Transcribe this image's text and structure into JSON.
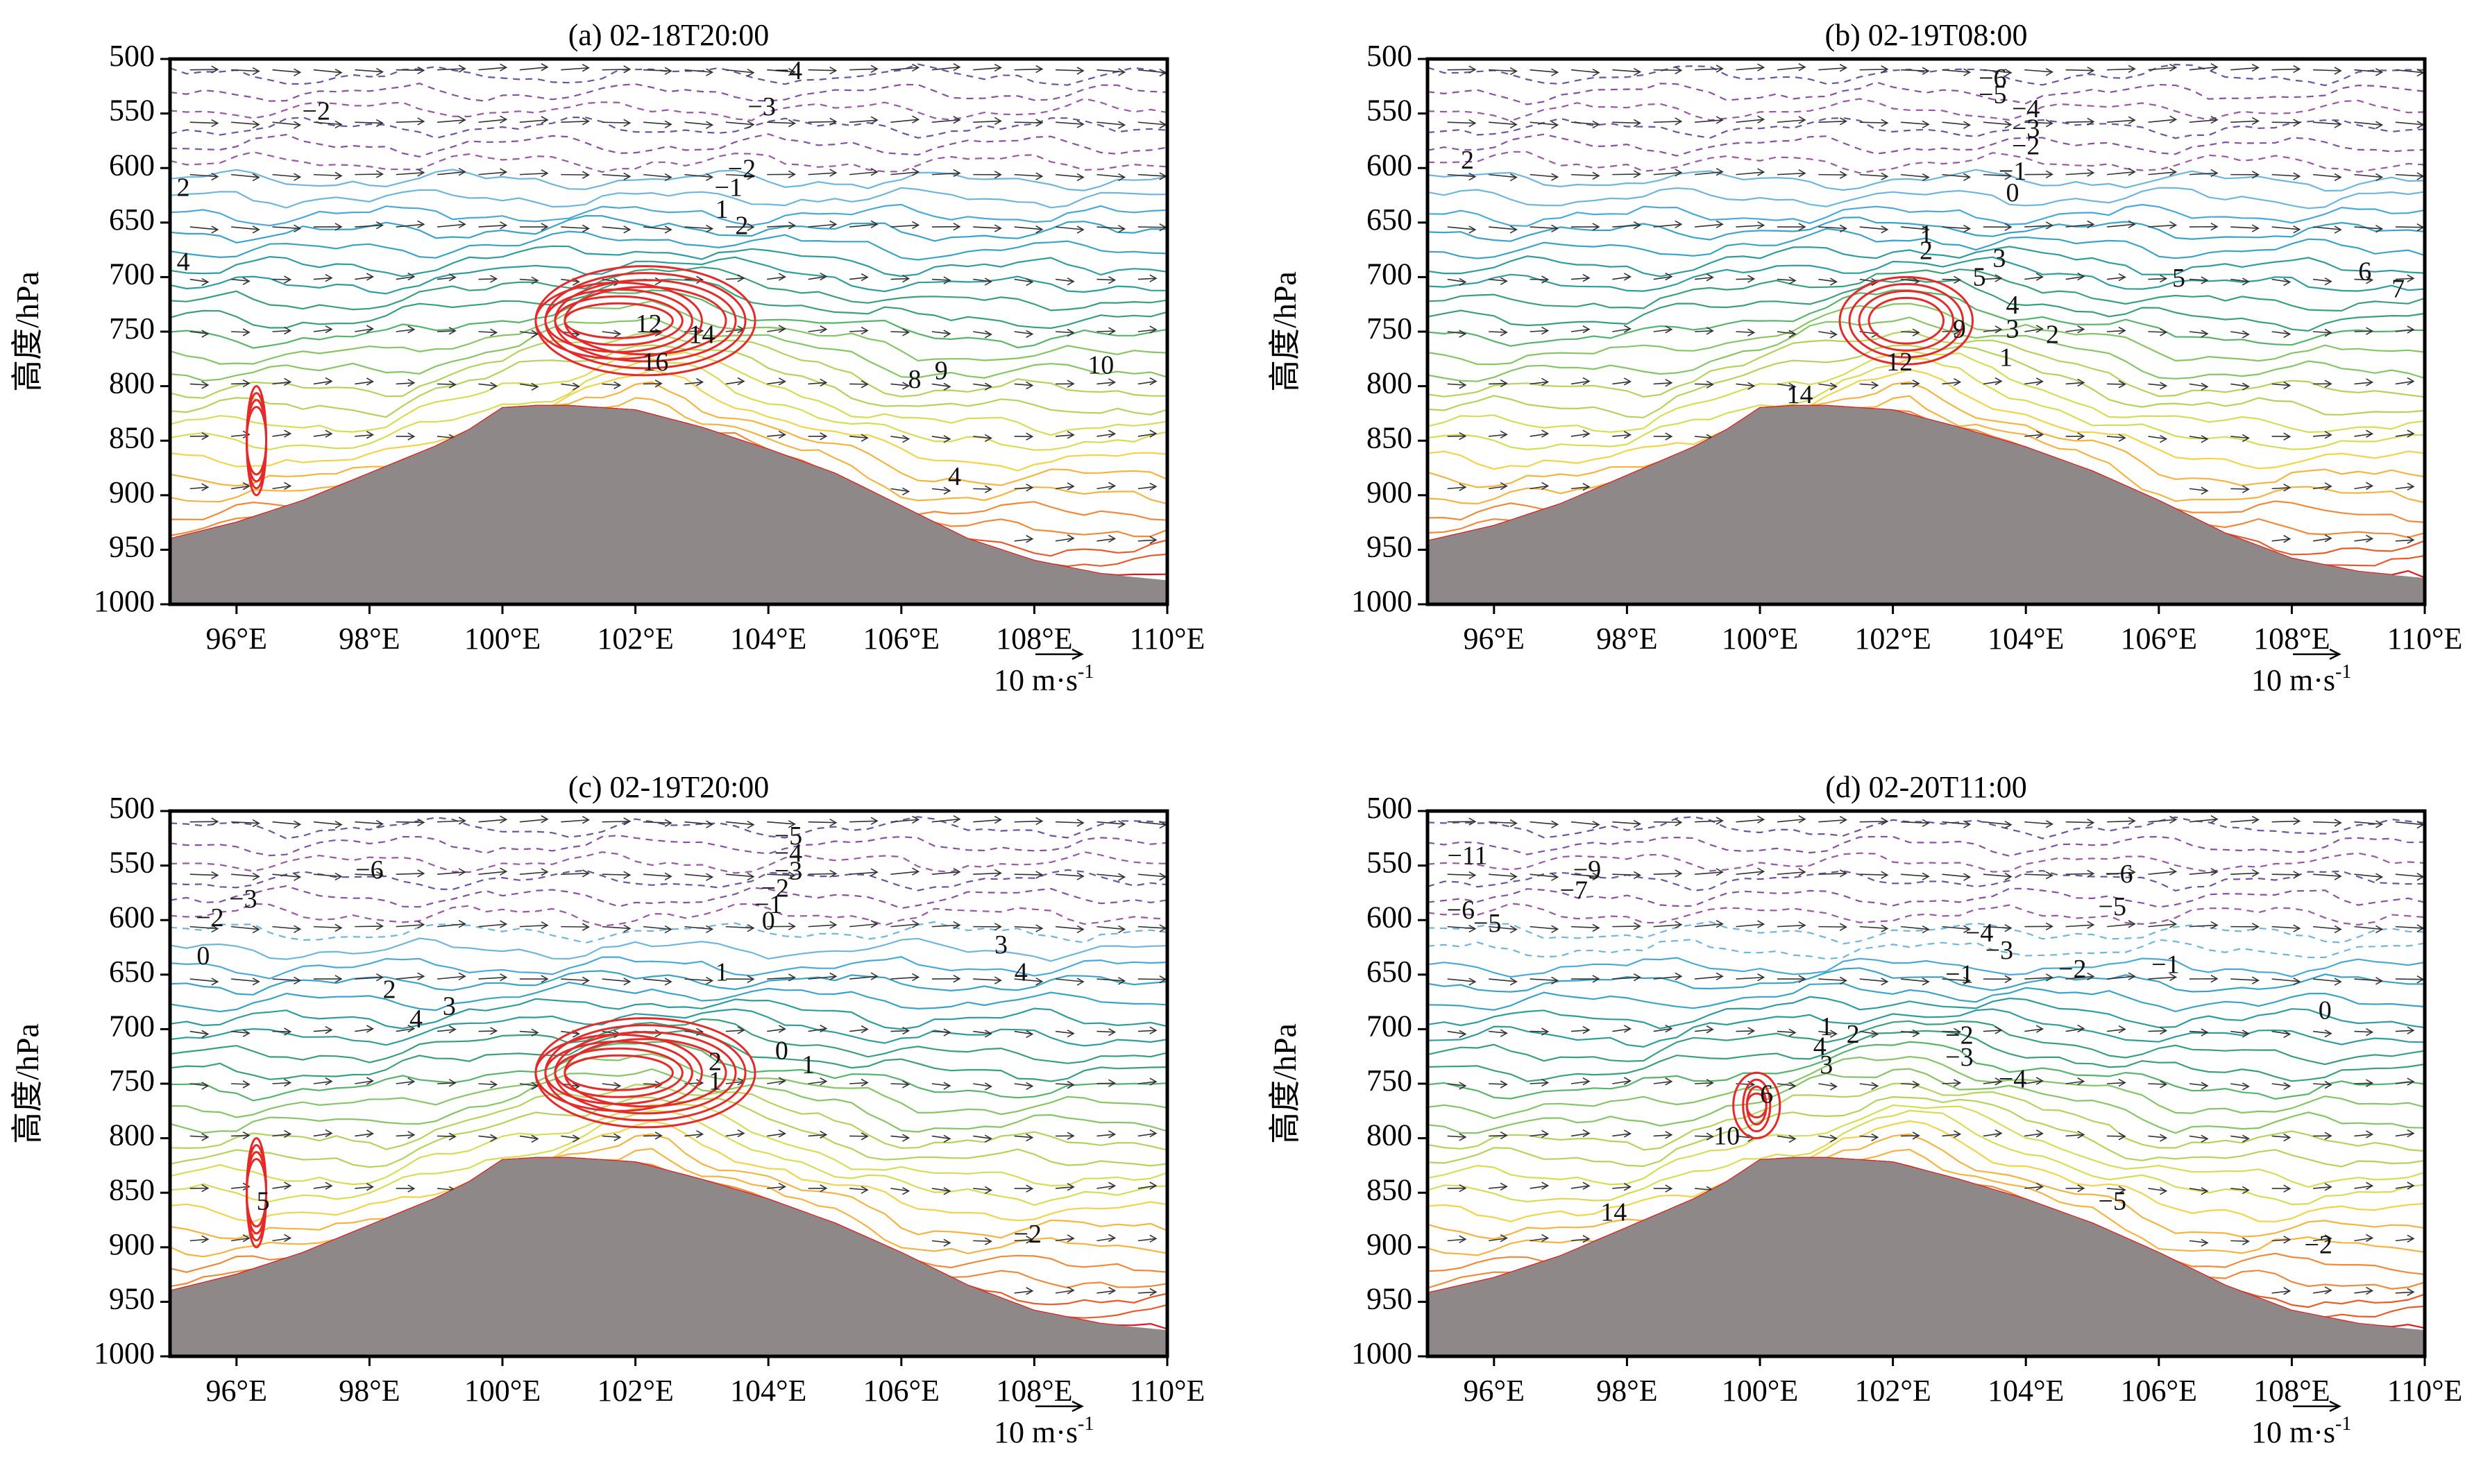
{
  "figure": {
    "y_axis_label": "高度/hPa",
    "y_ticks": [
      500,
      550,
      600,
      650,
      700,
      750,
      800,
      850,
      900,
      950,
      1000
    ],
    "x_ticks": [
      "96°E",
      "98°E",
      "100°E",
      "102°E",
      "104°E",
      "106°E",
      "108°E",
      "110°E"
    ],
    "vector_scale_label": "10 m·s",
    "vector_scale_sup": "-1"
  },
  "chart_data": [
    {
      "type": "contour",
      "title": "(a) 02-18T20:00",
      "xlim": [
        95,
        110
      ],
      "ylim": [
        1000,
        500
      ],
      "terrain_lon": [
        95,
        96,
        97,
        98,
        99,
        99.5,
        100,
        100.5,
        101,
        102,
        103,
        104,
        105,
        106,
        107,
        108,
        109,
        110
      ],
      "terrain_hpa": [
        940,
        925,
        905,
        880,
        855,
        840,
        820,
        818,
        818,
        822,
        838,
        858,
        880,
        910,
        940,
        960,
        972,
        978
      ],
      "contour_labels": [
        {
          "text": "−4",
          "lon": 104.3,
          "hpa": 513
        },
        {
          "text": "−2",
          "lon": 97.2,
          "hpa": 550
        },
        {
          "text": "−3",
          "lon": 103.9,
          "hpa": 546
        },
        {
          "text": "2",
          "lon": 95.2,
          "hpa": 620
        },
        {
          "text": "−2",
          "lon": 103.6,
          "hpa": 603
        },
        {
          "text": "−1",
          "lon": 103.4,
          "hpa": 620
        },
        {
          "text": "1",
          "lon": 103.3,
          "hpa": 640
        },
        {
          "text": "2",
          "lon": 103.6,
          "hpa": 655
        },
        {
          "text": "4",
          "lon": 95.2,
          "hpa": 688
        },
        {
          "text": "12",
          "lon": 102.2,
          "hpa": 745
        },
        {
          "text": "14",
          "lon": 103.0,
          "hpa": 755
        },
        {
          "text": "16",
          "lon": 102.3,
          "hpa": 780
        },
        {
          "text": "8",
          "lon": 106.2,
          "hpa": 796
        },
        {
          "text": "9",
          "lon": 106.6,
          "hpa": 788
        },
        {
          "text": "10",
          "lon": 109.0,
          "hpa": 783
        },
        {
          "text": "4",
          "lon": 106.8,
          "hpa": 885
        }
      ]
    },
    {
      "type": "contour",
      "title": "(b) 02-19T08:00",
      "xlim": [
        95,
        110
      ],
      "ylim": [
        1000,
        500
      ],
      "terrain_lon": [
        95,
        96,
        97,
        98,
        99,
        99.5,
        100,
        100.5,
        101,
        102,
        103,
        104,
        105,
        106,
        107,
        108,
        109,
        110
      ],
      "terrain_hpa": [
        942,
        928,
        908,
        882,
        856,
        840,
        820,
        818,
        818,
        822,
        838,
        856,
        878,
        905,
        935,
        958,
        970,
        976
      ],
      "contour_labels": [
        {
          "text": "−6",
          "lon": 103.5,
          "hpa": 520
        },
        {
          "text": "−5",
          "lon": 103.5,
          "hpa": 535
        },
        {
          "text": "−4",
          "lon": 104.0,
          "hpa": 548
        },
        {
          "text": "−3",
          "lon": 104.0,
          "hpa": 566
        },
        {
          "text": "−2",
          "lon": 104.0,
          "hpa": 582
        },
        {
          "text": "2",
          "lon": 95.6,
          "hpa": 595
        },
        {
          "text": "−1",
          "lon": 103.8,
          "hpa": 605
        },
        {
          "text": "0",
          "lon": 103.8,
          "hpa": 625
        },
        {
          "text": "1",
          "lon": 102.5,
          "hpa": 663
        },
        {
          "text": "2",
          "lon": 102.5,
          "hpa": 678
        },
        {
          "text": "3",
          "lon": 103.6,
          "hpa": 685
        },
        {
          "text": "5",
          "lon": 103.3,
          "hpa": 702
        },
        {
          "text": "5",
          "lon": 106.3,
          "hpa": 703
        },
        {
          "text": "6",
          "lon": 109.1,
          "hpa": 697
        },
        {
          "text": "7",
          "lon": 109.6,
          "hpa": 713
        },
        {
          "text": "4",
          "lon": 103.8,
          "hpa": 728
        },
        {
          "text": "9",
          "lon": 103.0,
          "hpa": 750
        },
        {
          "text": "3",
          "lon": 103.8,
          "hpa": 750
        },
        {
          "text": "2",
          "lon": 104.4,
          "hpa": 755
        },
        {
          "text": "12",
          "lon": 102.1,
          "hpa": 780
        },
        {
          "text": "1",
          "lon": 103.7,
          "hpa": 776
        },
        {
          "text": "14",
          "lon": 100.6,
          "hpa": 810
        }
      ]
    },
    {
      "type": "contour",
      "title": "(c) 02-19T20:00",
      "xlim": [
        95,
        110
      ],
      "ylim": [
        1000,
        500
      ],
      "terrain_lon": [
        95,
        96,
        97,
        98,
        99,
        99.5,
        100,
        100.5,
        101,
        102,
        103,
        104,
        105,
        106,
        107,
        108,
        109,
        110
      ],
      "terrain_hpa": [
        940,
        925,
        905,
        880,
        855,
        840,
        820,
        818,
        818,
        822,
        838,
        856,
        878,
        905,
        935,
        958,
        970,
        976
      ],
      "contour_labels": [
        {
          "text": "−5",
          "lon": 104.3,
          "hpa": 525
        },
        {
          "text": "−4",
          "lon": 104.3,
          "hpa": 541
        },
        {
          "text": "−6",
          "lon": 98.0,
          "hpa": 556
        },
        {
          "text": "−3",
          "lon": 104.3,
          "hpa": 557
        },
        {
          "text": "−2",
          "lon": 104.1,
          "hpa": 573
        },
        {
          "text": "−3",
          "lon": 96.1,
          "hpa": 583
        },
        {
          "text": "−1",
          "lon": 104.0,
          "hpa": 588
        },
        {
          "text": "−2",
          "lon": 95.6,
          "hpa": 600
        },
        {
          "text": "0",
          "lon": 104.0,
          "hpa": 603
        },
        {
          "text": "0",
          "lon": 95.5,
          "hpa": 635
        },
        {
          "text": "3",
          "lon": 107.5,
          "hpa": 625
        },
        {
          "text": "4",
          "lon": 107.8,
          "hpa": 650
        },
        {
          "text": "1",
          "lon": 103.3,
          "hpa": 650
        },
        {
          "text": "2",
          "lon": 98.3,
          "hpa": 666
        },
        {
          "text": "3",
          "lon": 99.2,
          "hpa": 681
        },
        {
          "text": "4",
          "lon": 98.7,
          "hpa": 693
        },
        {
          "text": "2",
          "lon": 103.2,
          "hpa": 732
        },
        {
          "text": "1",
          "lon": 103.2,
          "hpa": 750
        },
        {
          "text": "0",
          "lon": 104.2,
          "hpa": 722
        },
        {
          "text": "1",
          "lon": 104.6,
          "hpa": 735
        },
        {
          "text": "5",
          "lon": 96.4,
          "hpa": 860
        },
        {
          "text": "−2",
          "lon": 107.9,
          "hpa": 890
        }
      ]
    },
    {
      "type": "contour",
      "title": "(d) 02-20T11:00",
      "xlim": [
        95,
        110
      ],
      "ylim": [
        1000,
        500
      ],
      "terrain_lon": [
        95,
        96,
        97,
        98,
        99,
        99.5,
        100,
        100.5,
        101,
        102,
        103,
        104,
        105,
        106,
        107,
        108,
        109,
        110
      ],
      "terrain_hpa": [
        942,
        928,
        908,
        882,
        856,
        840,
        820,
        818,
        818,
        822,
        838,
        856,
        878,
        905,
        935,
        958,
        970,
        976
      ],
      "contour_labels": [
        {
          "text": "−11",
          "lon": 95.6,
          "hpa": 543
        },
        {
          "text": "−9",
          "lon": 97.4,
          "hpa": 556
        },
        {
          "text": "−6",
          "lon": 105.4,
          "hpa": 560
        },
        {
          "text": "−7",
          "lon": 97.2,
          "hpa": 575
        },
        {
          "text": "−5",
          "lon": 105.3,
          "hpa": 590
        },
        {
          "text": "−6",
          "lon": 95.5,
          "hpa": 593
        },
        {
          "text": "−5",
          "lon": 95.9,
          "hpa": 605
        },
        {
          "text": "−4",
          "lon": 103.3,
          "hpa": 614
        },
        {
          "text": "−3",
          "lon": 103.6,
          "hpa": 630
        },
        {
          "text": "−2",
          "lon": 104.7,
          "hpa": 647
        },
        {
          "text": "−1",
          "lon": 103.0,
          "hpa": 652
        },
        {
          "text": "−1",
          "lon": 106.1,
          "hpa": 643
        },
        {
          "text": "0",
          "lon": 108.5,
          "hpa": 685
        },
        {
          "text": "1",
          "lon": 101.0,
          "hpa": 700
        },
        {
          "text": "2",
          "lon": 101.4,
          "hpa": 707
        },
        {
          "text": "−2",
          "lon": 103.0,
          "hpa": 708
        },
        {
          "text": "4",
          "lon": 100.9,
          "hpa": 718
        },
        {
          "text": "−3",
          "lon": 103.0,
          "hpa": 728
        },
        {
          "text": "3",
          "lon": 101.0,
          "hpa": 735
        },
        {
          "text": "−4",
          "lon": 103.8,
          "hpa": 748
        },
        {
          "text": "6",
          "lon": 100.1,
          "hpa": 762
        },
        {
          "text": "10",
          "lon": 99.5,
          "hpa": 800
        },
        {
          "text": "14",
          "lon": 97.8,
          "hpa": 870
        },
        {
          "text": "−5",
          "lon": 105.3,
          "hpa": 860
        },
        {
          "text": "−2",
          "lon": 108.4,
          "hpa": 900
        }
      ]
    }
  ]
}
